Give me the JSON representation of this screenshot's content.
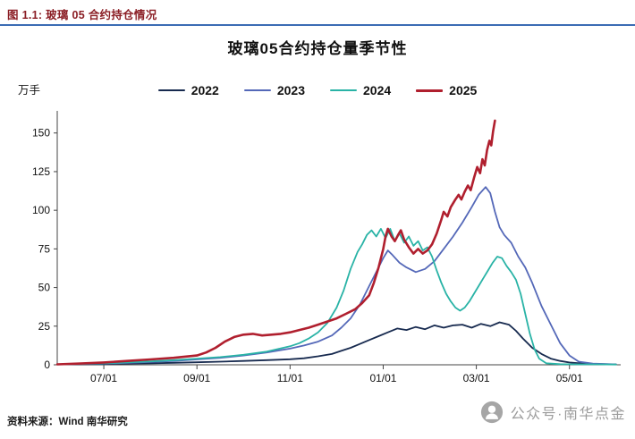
{
  "header": {
    "title": "图 1.1: 玻璃 05 合约持仓情况"
  },
  "footer": {
    "source": "资料来源：Wind 南华研究"
  },
  "watermark": {
    "text": "公众号·南华点金"
  },
  "chart_data": {
    "type": "line",
    "title": "玻璃05合约持仓量季节性",
    "ylabel": "万手",
    "ylim": [
      0,
      162
    ],
    "yticks": [
      0,
      25,
      50,
      75,
      100,
      125,
      150
    ],
    "x_unit": "months since 06/01 (season start)",
    "x_range": [
      0,
      12.1
    ],
    "xticks": [
      {
        "label": "07/01",
        "pos": 1
      },
      {
        "label": "09/01",
        "pos": 3
      },
      {
        "label": "11/01",
        "pos": 5
      },
      {
        "label": "01/01",
        "pos": 7
      },
      {
        "label": "03/01",
        "pos": 9
      },
      {
        "label": "05/01",
        "pos": 11
      }
    ],
    "grid": false,
    "legend_position": "top",
    "series": [
      {
        "name": "2022",
        "color": "#172a4f",
        "width": 1.8,
        "points": [
          [
            0,
            0.3
          ],
          [
            0.5,
            0.4
          ],
          [
            1,
            0.5
          ],
          [
            1.5,
            0.8
          ],
          [
            2,
            1
          ],
          [
            2.5,
            1.3
          ],
          [
            3,
            1.6
          ],
          [
            3.5,
            2
          ],
          [
            4,
            2.5
          ],
          [
            4.5,
            3
          ],
          [
            5,
            3.6
          ],
          [
            5.3,
            4.2
          ],
          [
            5.6,
            5.5
          ],
          [
            5.9,
            7
          ],
          [
            6.1,
            9
          ],
          [
            6.3,
            11
          ],
          [
            6.5,
            13.5
          ],
          [
            6.7,
            16
          ],
          [
            6.9,
            18.5
          ],
          [
            7.1,
            21
          ],
          [
            7.3,
            23.5
          ],
          [
            7.5,
            22.5
          ],
          [
            7.7,
            24.5
          ],
          [
            7.9,
            23
          ],
          [
            8.1,
            25.5
          ],
          [
            8.3,
            24
          ],
          [
            8.5,
            25.5
          ],
          [
            8.7,
            26
          ],
          [
            8.9,
            24
          ],
          [
            9.1,
            26.5
          ],
          [
            9.3,
            25
          ],
          [
            9.5,
            27.5
          ],
          [
            9.7,
            26
          ],
          [
            9.85,
            22
          ],
          [
            10,
            17
          ],
          [
            10.2,
            11
          ],
          [
            10.4,
            7
          ],
          [
            10.6,
            4
          ],
          [
            10.8,
            2.5
          ],
          [
            11,
            1.5
          ],
          [
            11.3,
            0.8
          ],
          [
            11.7,
            0.4
          ],
          [
            12,
            0.3
          ]
        ]
      },
      {
        "name": "2023",
        "color": "#5468b8",
        "width": 1.8,
        "points": [
          [
            0,
            0.3
          ],
          [
            0.5,
            0.5
          ],
          [
            1,
            0.8
          ],
          [
            1.5,
            1.2
          ],
          [
            2,
            1.8
          ],
          [
            2.5,
            2.5
          ],
          [
            3,
            3.5
          ],
          [
            3.5,
            4.5
          ],
          [
            4,
            6
          ],
          [
            4.5,
            8
          ],
          [
            5,
            10.5
          ],
          [
            5.3,
            12.5
          ],
          [
            5.6,
            15
          ],
          [
            5.9,
            19
          ],
          [
            6.1,
            24
          ],
          [
            6.3,
            30
          ],
          [
            6.5,
            39
          ],
          [
            6.7,
            51
          ],
          [
            6.9,
            63
          ],
          [
            7,
            69
          ],
          [
            7.1,
            74
          ],
          [
            7.2,
            71
          ],
          [
            7.35,
            66
          ],
          [
            7.5,
            63
          ],
          [
            7.7,
            60
          ],
          [
            7.9,
            62
          ],
          [
            8.1,
            67
          ],
          [
            8.3,
            75
          ],
          [
            8.5,
            83
          ],
          [
            8.7,
            92
          ],
          [
            8.9,
            102
          ],
          [
            9.05,
            110
          ],
          [
            9.2,
            115
          ],
          [
            9.3,
            111
          ],
          [
            9.4,
            99
          ],
          [
            9.5,
            89
          ],
          [
            9.6,
            84
          ],
          [
            9.75,
            79
          ],
          [
            9.9,
            70
          ],
          [
            10.05,
            63
          ],
          [
            10.2,
            53
          ],
          [
            10.4,
            38
          ],
          [
            10.6,
            26
          ],
          [
            10.8,
            14
          ],
          [
            11,
            6
          ],
          [
            11.2,
            2
          ],
          [
            11.5,
            0.8
          ],
          [
            12,
            0.3
          ]
        ]
      },
      {
        "name": "2024",
        "color": "#29b3a6",
        "width": 1.8,
        "points": [
          [
            0,
            0.3
          ],
          [
            0.5,
            0.6
          ],
          [
            1,
            1
          ],
          [
            1.5,
            1.5
          ],
          [
            2,
            2.2
          ],
          [
            2.5,
            3
          ],
          [
            3,
            4
          ],
          [
            3.5,
            5
          ],
          [
            4,
            6.5
          ],
          [
            4.5,
            8.5
          ],
          [
            5,
            12
          ],
          [
            5.2,
            14
          ],
          [
            5.4,
            17
          ],
          [
            5.6,
            21
          ],
          [
            5.8,
            27
          ],
          [
            6,
            37
          ],
          [
            6.15,
            48
          ],
          [
            6.3,
            62
          ],
          [
            6.45,
            73
          ],
          [
            6.55,
            78
          ],
          [
            6.65,
            84
          ],
          [
            6.75,
            87
          ],
          [
            6.85,
            83
          ],
          [
            6.95,
            88
          ],
          [
            7.05,
            82
          ],
          [
            7.15,
            88
          ],
          [
            7.25,
            80
          ],
          [
            7.35,
            85
          ],
          [
            7.45,
            79
          ],
          [
            7.55,
            83
          ],
          [
            7.65,
            77
          ],
          [
            7.75,
            80
          ],
          [
            7.85,
            74
          ],
          [
            7.95,
            76
          ],
          [
            8.05,
            70
          ],
          [
            8.15,
            61
          ],
          [
            8.25,
            53
          ],
          [
            8.35,
            46
          ],
          [
            8.45,
            41
          ],
          [
            8.55,
            37
          ],
          [
            8.65,
            35
          ],
          [
            8.75,
            37
          ],
          [
            8.85,
            41
          ],
          [
            8.95,
            46
          ],
          [
            9.05,
            51
          ],
          [
            9.15,
            56
          ],
          [
            9.25,
            61
          ],
          [
            9.35,
            66
          ],
          [
            9.45,
            70
          ],
          [
            9.55,
            69
          ],
          [
            9.65,
            64
          ],
          [
            9.75,
            60
          ],
          [
            9.85,
            55
          ],
          [
            9.95,
            46
          ],
          [
            10.05,
            33
          ],
          [
            10.15,
            20
          ],
          [
            10.25,
            10
          ],
          [
            10.35,
            4
          ],
          [
            10.5,
            1
          ],
          [
            10.8,
            0.4
          ],
          [
            11.2,
            0.3
          ],
          [
            11.6,
            0.3
          ],
          [
            12,
            0.2
          ]
        ]
      },
      {
        "name": "2025",
        "color": "#b01f2e",
        "width": 2.6,
        "points": [
          [
            0,
            0.3
          ],
          [
            0.5,
            0.8
          ],
          [
            1,
            1.5
          ],
          [
            1.5,
            2.5
          ],
          [
            2,
            3.5
          ],
          [
            2.5,
            4.5
          ],
          [
            3,
            6
          ],
          [
            3.2,
            8
          ],
          [
            3.4,
            11
          ],
          [
            3.6,
            15
          ],
          [
            3.8,
            18
          ],
          [
            4,
            19.5
          ],
          [
            4.2,
            20
          ],
          [
            4.4,
            19
          ],
          [
            4.6,
            19.5
          ],
          [
            4.8,
            20
          ],
          [
            5,
            21
          ],
          [
            5.2,
            22.5
          ],
          [
            5.4,
            24
          ],
          [
            5.6,
            26
          ],
          [
            5.8,
            28
          ],
          [
            6,
            30
          ],
          [
            6.2,
            33
          ],
          [
            6.4,
            36
          ],
          [
            6.55,
            40
          ],
          [
            6.7,
            45
          ],
          [
            6.8,
            53
          ],
          [
            6.9,
            63
          ],
          [
            7,
            75
          ],
          [
            7.05,
            83
          ],
          [
            7.1,
            88
          ],
          [
            7.18,
            83
          ],
          [
            7.25,
            80
          ],
          [
            7.32,
            84
          ],
          [
            7.38,
            87
          ],
          [
            7.45,
            81
          ],
          [
            7.55,
            76
          ],
          [
            7.65,
            72
          ],
          [
            7.75,
            75
          ],
          [
            7.85,
            72
          ],
          [
            7.95,
            74
          ],
          [
            8.05,
            78
          ],
          [
            8.15,
            85
          ],
          [
            8.25,
            94
          ],
          [
            8.3,
            99
          ],
          [
            8.38,
            96
          ],
          [
            8.45,
            102
          ],
          [
            8.55,
            107
          ],
          [
            8.62,
            110
          ],
          [
            8.68,
            107
          ],
          [
            8.75,
            112
          ],
          [
            8.82,
            116
          ],
          [
            8.88,
            113
          ],
          [
            8.95,
            121
          ],
          [
            9.02,
            128
          ],
          [
            9.08,
            124
          ],
          [
            9.13,
            133
          ],
          [
            9.18,
            129
          ],
          [
            9.23,
            139
          ],
          [
            9.28,
            145
          ],
          [
            9.32,
            142
          ],
          [
            9.36,
            151
          ],
          [
            9.4,
            158
          ]
        ]
      }
    ]
  }
}
